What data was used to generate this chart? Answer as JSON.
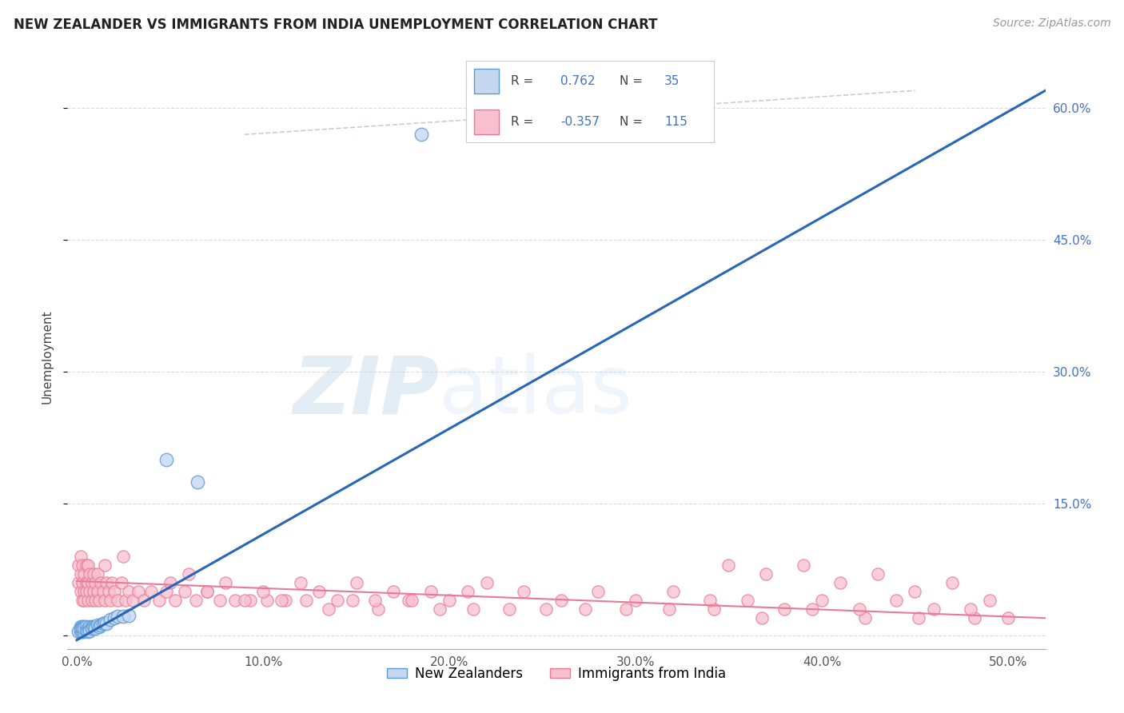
{
  "title": "NEW ZEALANDER VS IMMIGRANTS FROM INDIA UNEMPLOYMENT CORRELATION CHART",
  "source": "Source: ZipAtlas.com",
  "ylabel": "Unemployment",
  "xlim": [
    -0.005,
    0.52
  ],
  "ylim": [
    -0.015,
    0.65
  ],
  "nz_R": 0.762,
  "nz_N": 35,
  "india_R": -0.357,
  "india_N": 115,
  "nz_fill_color": "#c5d8f0",
  "india_fill_color": "#f8c0cf",
  "nz_edge_color": "#5b9bd5",
  "india_edge_color": "#e87a96",
  "nz_line_color": "#2966b8",
  "india_line_color": "#e87a96",
  "dash_line_color": "#b0c4d8",
  "background_color": "#ffffff",
  "grid_color": "#d8d8d8",
  "title_color": "#222222",
  "source_color": "#999999",
  "ylabel_color": "#444444",
  "right_tick_color": "#4472c4",
  "legend_box_color": "#f5f5f5",
  "legend_border_color": "#cccccc",
  "nz_points_x": [
    0.001,
    0.002,
    0.002,
    0.002,
    0.003,
    0.003,
    0.003,
    0.004,
    0.004,
    0.004,
    0.005,
    0.005,
    0.006,
    0.006,
    0.007,
    0.007,
    0.008,
    0.008,
    0.009,
    0.01,
    0.01,
    0.011,
    0.012,
    0.013,
    0.014,
    0.015,
    0.016,
    0.018,
    0.02,
    0.022,
    0.025,
    0.028,
    0.048,
    0.065,
    0.185
  ],
  "nz_points_y": [
    0.005,
    0.01,
    0.005,
    0.008,
    0.01,
    0.005,
    0.008,
    0.01,
    0.005,
    0.008,
    0.01,
    0.006,
    0.008,
    0.005,
    0.01,
    0.006,
    0.01,
    0.008,
    0.01,
    0.01,
    0.008,
    0.012,
    0.01,
    0.012,
    0.014,
    0.015,
    0.014,
    0.018,
    0.02,
    0.022,
    0.022,
    0.023,
    0.2,
    0.175,
    0.57
  ],
  "india_points_x": [
    0.001,
    0.001,
    0.002,
    0.002,
    0.002,
    0.003,
    0.003,
    0.003,
    0.004,
    0.004,
    0.004,
    0.005,
    0.005,
    0.005,
    0.006,
    0.006,
    0.006,
    0.007,
    0.007,
    0.008,
    0.008,
    0.009,
    0.009,
    0.01,
    0.01,
    0.011,
    0.011,
    0.012,
    0.013,
    0.014,
    0.015,
    0.016,
    0.017,
    0.018,
    0.019,
    0.02,
    0.022,
    0.024,
    0.026,
    0.028,
    0.03,
    0.033,
    0.036,
    0.04,
    0.044,
    0.048,
    0.053,
    0.058,
    0.064,
    0.07,
    0.077,
    0.085,
    0.093,
    0.102,
    0.112,
    0.123,
    0.135,
    0.148,
    0.162,
    0.178,
    0.195,
    0.213,
    0.232,
    0.252,
    0.273,
    0.295,
    0.318,
    0.342,
    0.368,
    0.395,
    0.423,
    0.452,
    0.482,
    0.05,
    0.06,
    0.07,
    0.08,
    0.09,
    0.1,
    0.11,
    0.12,
    0.13,
    0.14,
    0.15,
    0.16,
    0.17,
    0.18,
    0.19,
    0.2,
    0.21,
    0.22,
    0.24,
    0.26,
    0.28,
    0.3,
    0.32,
    0.34,
    0.36,
    0.38,
    0.4,
    0.42,
    0.44,
    0.46,
    0.48,
    0.5,
    0.35,
    0.37,
    0.39,
    0.41,
    0.43,
    0.45,
    0.47,
    0.49,
    0.015,
    0.025
  ],
  "india_points_y": [
    0.06,
    0.08,
    0.05,
    0.07,
    0.09,
    0.04,
    0.06,
    0.08,
    0.05,
    0.07,
    0.04,
    0.06,
    0.08,
    0.05,
    0.04,
    0.06,
    0.08,
    0.05,
    0.07,
    0.04,
    0.06,
    0.05,
    0.07,
    0.04,
    0.06,
    0.05,
    0.07,
    0.04,
    0.06,
    0.05,
    0.04,
    0.06,
    0.05,
    0.04,
    0.06,
    0.05,
    0.04,
    0.06,
    0.04,
    0.05,
    0.04,
    0.05,
    0.04,
    0.05,
    0.04,
    0.05,
    0.04,
    0.05,
    0.04,
    0.05,
    0.04,
    0.04,
    0.04,
    0.04,
    0.04,
    0.04,
    0.03,
    0.04,
    0.03,
    0.04,
    0.03,
    0.03,
    0.03,
    0.03,
    0.03,
    0.03,
    0.03,
    0.03,
    0.02,
    0.03,
    0.02,
    0.02,
    0.02,
    0.06,
    0.07,
    0.05,
    0.06,
    0.04,
    0.05,
    0.04,
    0.06,
    0.05,
    0.04,
    0.06,
    0.04,
    0.05,
    0.04,
    0.05,
    0.04,
    0.05,
    0.06,
    0.05,
    0.04,
    0.05,
    0.04,
    0.05,
    0.04,
    0.04,
    0.03,
    0.04,
    0.03,
    0.04,
    0.03,
    0.03,
    0.02,
    0.08,
    0.07,
    0.08,
    0.06,
    0.07,
    0.05,
    0.06,
    0.04,
    0.08,
    0.09
  ],
  "nz_line_x": [
    0.0,
    0.52
  ],
  "nz_line_y": [
    -0.005,
    0.62
  ],
  "india_line_x": [
    0.0,
    0.52
  ],
  "india_line_y": [
    0.062,
    0.02
  ],
  "dash_line_x": [
    0.09,
    0.45
  ],
  "dash_line_y": [
    0.57,
    0.62
  ]
}
